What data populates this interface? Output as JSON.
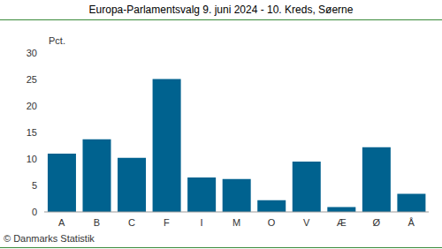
{
  "chart_data": {
    "type": "bar",
    "title": "Europa-Parlamentsvalg 9. juni 2024 - 10. Kreds, Søerne",
    "ylabel": "Pct.",
    "annotations": [
      "© Danmarks Statistik"
    ],
    "categories": [
      "A",
      "B",
      "C",
      "F",
      "I",
      "M",
      "O",
      "V",
      "Æ",
      "Ø",
      "Å"
    ],
    "values": [
      11.0,
      13.7,
      10.2,
      25.1,
      6.5,
      6.2,
      2.2,
      9.5,
      0.9,
      12.2,
      3.4
    ],
    "color": "#00628f",
    "ylim": [
      0,
      30
    ],
    "yticks": [
      0,
      5,
      10,
      15,
      20,
      25,
      30
    ],
    "grid": false
  }
}
